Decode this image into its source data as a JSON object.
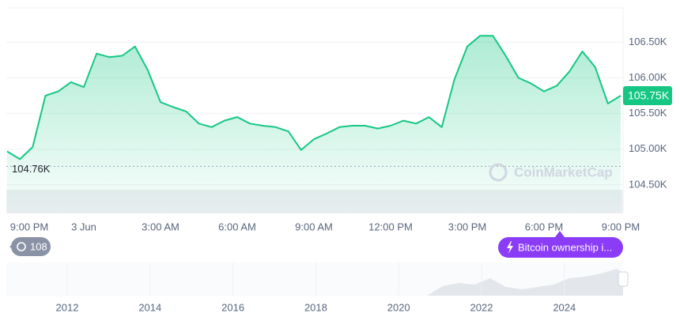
{
  "chart_data": {
    "type": "line",
    "color": "#16c784",
    "categories": [
      "9:00 PM",
      null,
      null,
      null,
      null,
      null,
      "3 Jun",
      null,
      null,
      null,
      null,
      null,
      "3:00 AM",
      null,
      null,
      null,
      null,
      null,
      "6:00 AM",
      null,
      null,
      null,
      null,
      null,
      "9:00 AM",
      null,
      null,
      null,
      null,
      null,
      "12:00 PM",
      null,
      null,
      null,
      null,
      null,
      "3:00 PM",
      null,
      null,
      null,
      null,
      null,
      "6:00 PM",
      null,
      null,
      null,
      null,
      null,
      "9:00 PM"
    ],
    "values": [
      104970,
      104860,
      105030,
      105750,
      105810,
      105940,
      105870,
      106340,
      106290,
      106310,
      106440,
      106110,
      105660,
      105590,
      105530,
      105360,
      105310,
      105400,
      105450,
      105360,
      105330,
      105310,
      105250,
      104990,
      105140,
      105220,
      105310,
      105330,
      105330,
      105290,
      105330,
      105400,
      105360,
      105450,
      105310,
      105980,
      106440,
      106590,
      106590,
      106310,
      106000,
      105920,
      105810,
      105890,
      106090,
      106370,
      106150,
      105640,
      105750
    ],
    "value_labels": [
      null,
      null,
      null,
      null,
      null,
      null,
      null,
      null,
      null,
      null,
      null,
      null,
      null,
      null,
      null,
      null,
      null,
      null,
      null,
      null,
      null,
      null,
      null,
      null,
      null,
      null,
      null,
      null,
      null,
      null,
      null,
      null,
      null,
      null,
      null,
      null,
      null,
      null,
      null,
      null,
      null,
      null,
      null,
      null,
      null,
      null,
      null,
      null,
      "105.75K"
    ],
    "ylim": [
      104100,
      106980
    ],
    "yticks": [
      {
        "value": 104500,
        "label": "104.50K"
      },
      {
        "value": 105000,
        "label": "105.00K"
      },
      {
        "value": 105500,
        "label": "105.50K"
      },
      {
        "value": 106000,
        "label": "106.00K"
      },
      {
        "value": 106500,
        "label": "106.50K"
      }
    ],
    "grid": true,
    "reference_line": {
      "value": 104760,
      "label": "104.76K"
    },
    "watermark": "CoinMarketCap",
    "events_badge": "108",
    "news_badge": "Bitcoin ownership i...",
    "navigator_years": [
      "2012",
      "2014",
      "2016",
      "2018",
      "2020",
      "2022",
      "2024"
    ]
  }
}
